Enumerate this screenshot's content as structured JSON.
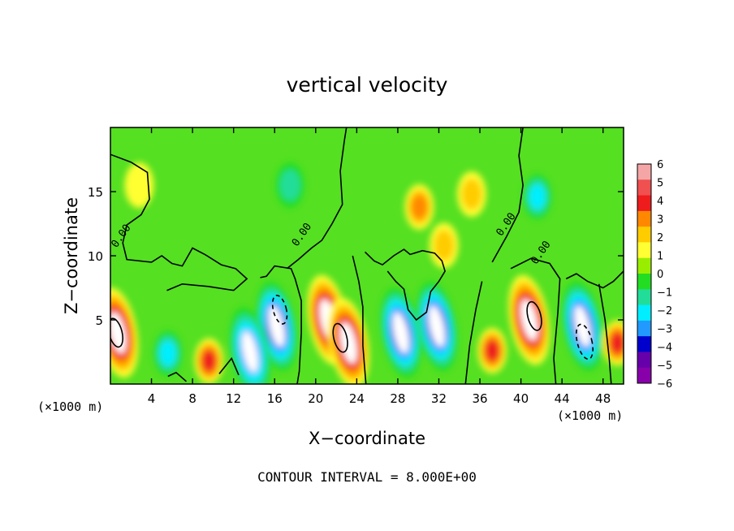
{
  "chart_data": {
    "type": "heatmap",
    "title": "vertical velocity",
    "xlabel": "X−coordinate",
    "ylabel": "Z−coordinate",
    "x_units_left": "(×1000 m)",
    "x_units_right": "(×1000 m)",
    "footer": "CONTOUR INTERVAL = 8.000E+00",
    "xlim": [
      0,
      50
    ],
    "ylim": [
      0,
      20
    ],
    "x_ticks": [
      4,
      8,
      12,
      16,
      20,
      24,
      28,
      32,
      36,
      40,
      44,
      48
    ],
    "y_ticks": [
      5,
      10,
      15
    ],
    "colorbar": {
      "levels": [
        6,
        5,
        4,
        3,
        2,
        1,
        0,
        -1,
        -2,
        -3,
        -4,
        -5,
        -6
      ],
      "labels": [
        "6",
        "5",
        "4",
        "3",
        "2",
        "1",
        "0",
        "−1",
        "−2",
        "−3",
        "−4",
        "−5",
        "−6"
      ],
      "colors": [
        "#f4a6a6",
        "#f05050",
        "#ee1c1c",
        "#ff8800",
        "#ffcc00",
        "#ffff33",
        "#99ee00",
        "#22dd22",
        "#22dd99",
        "#00eeff",
        "#2299ff",
        "#0000cc",
        "#6600aa",
        "#8800aa"
      ]
    },
    "contour_labels": [
      {
        "text": "0.00",
        "x": 1.3,
        "y": 11.4
      },
      {
        "text": "0.00",
        "x": 18.9,
        "y": 11.5
      },
      {
        "text": "0.00",
        "x": 38.8,
        "y": 12.3
      },
      {
        "text": "0.00",
        "x": 42.2,
        "y": 10.1
      }
    ],
    "features": [
      {
        "x": 0.7,
        "z": 4.0,
        "w": 5.5
      },
      {
        "x": 16.2,
        "z": 4.5,
        "w": -5.8
      },
      {
        "x": 21.2,
        "z": 5.0,
        "w": 6.0
      },
      {
        "x": 23.2,
        "z": 3.2,
        "w": 6.0
      },
      {
        "x": 28.3,
        "z": 4.0,
        "w": -5.8
      },
      {
        "x": 31.8,
        "z": 4.5,
        "w": -5.8
      },
      {
        "x": 40.8,
        "z": 5.0,
        "w": 6.2
      },
      {
        "x": 46.0,
        "z": 4.5,
        "w": -6.0
      },
      {
        "x": 13.6,
        "z": 2.5,
        "w": -5.0
      },
      {
        "x": 9.6,
        "z": 1.8,
        "w": 4.0
      },
      {
        "x": 5.6,
        "z": 2.4,
        "w": -2.8
      },
      {
        "x": 37.2,
        "z": 2.6,
        "w": 4.0
      },
      {
        "x": 49.4,
        "z": 3.2,
        "w": 4.2
      },
      {
        "x": 30.1,
        "z": 13.8,
        "w": 2.8
      },
      {
        "x": 35.2,
        "z": 14.8,
        "w": 2.4
      },
      {
        "x": 41.6,
        "z": 14.6,
        "w": -3.0
      },
      {
        "x": 17.5,
        "z": 15.5,
        "w": -2.2
      },
      {
        "x": 2.8,
        "z": 15.5,
        "w": 0.8
      },
      {
        "x": 32.5,
        "z": 10.8,
        "w": 1.6
      }
    ]
  }
}
